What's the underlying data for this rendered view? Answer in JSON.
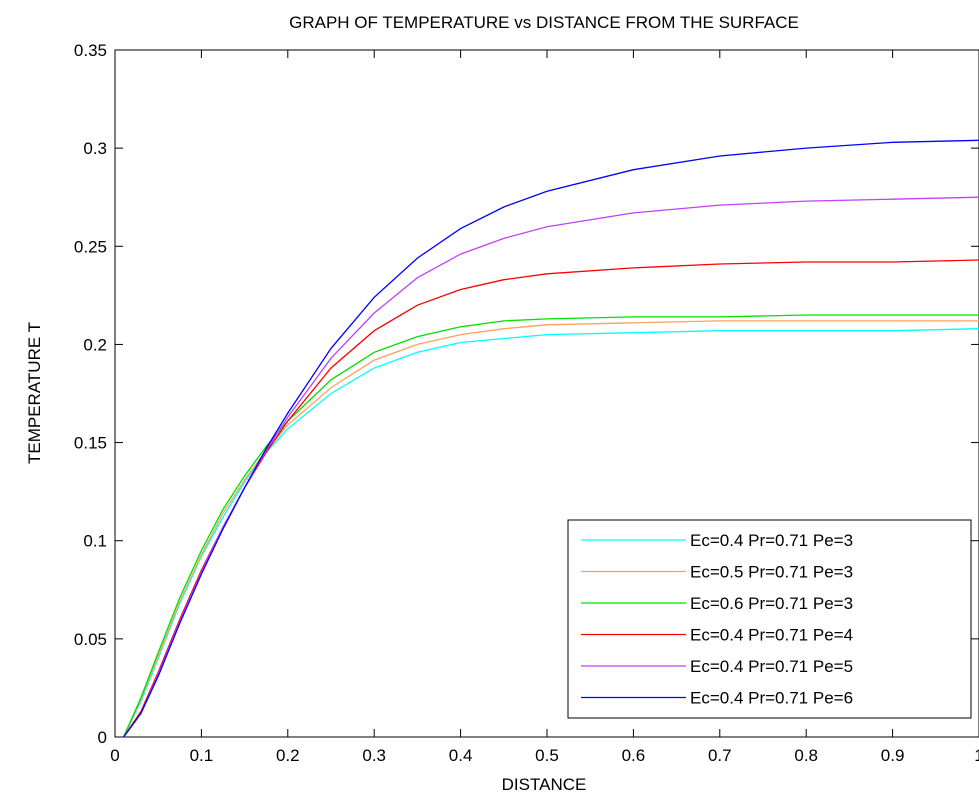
{
  "chart_data": {
    "type": "line",
    "title": "GRAPH OF TEMPERATURE vs DISTANCE FROM THE SURFACE",
    "xlabel": "DISTANCE",
    "ylabel": "TEMPERATURE T",
    "xlim": [
      0,
      1
    ],
    "ylim": [
      0,
      0.35
    ],
    "x_ticks": [
      0,
      0.1,
      0.2,
      0.3,
      0.4,
      0.5,
      0.6,
      0.7,
      0.8,
      0.9,
      1
    ],
    "x_tick_labels": [
      "0",
      "0.1",
      "0.2",
      "0.3",
      "0.4",
      "0.5",
      "0.6",
      "0.7",
      "0.8",
      "0.9",
      "1"
    ],
    "y_ticks": [
      0,
      0.05,
      0.1,
      0.15,
      0.2,
      0.25,
      0.3,
      0.35
    ],
    "y_tick_labels": [
      "0",
      "0.05",
      "0.1",
      "0.15",
      "0.2",
      "0.25",
      "0.3",
      "0.35"
    ],
    "grid": false,
    "legend_position": "bottom-right",
    "series": [
      {
        "name": "Ec=0.4 Pr=0.71 Pe=3",
        "color": "#00ffff",
        "x": [
          0.01,
          0.03,
          0.05,
          0.075,
          0.1,
          0.125,
          0.15,
          0.175,
          0.2,
          0.25,
          0.3,
          0.35,
          0.4,
          0.45,
          0.5,
          0.6,
          0.7,
          0.8,
          0.9,
          1.0
        ],
        "y": [
          0,
          0.018,
          0.04,
          0.068,
          0.092,
          0.112,
          0.13,
          0.145,
          0.157,
          0.175,
          0.188,
          0.196,
          0.201,
          0.203,
          0.205,
          0.206,
          0.207,
          0.207,
          0.207,
          0.208
        ]
      },
      {
        "name": "Ec=0.5 Pr=0.71 Pe=3",
        "color": "#ffa060",
        "x": [
          0.01,
          0.03,
          0.05,
          0.075,
          0.1,
          0.125,
          0.15,
          0.175,
          0.2,
          0.25,
          0.3,
          0.35,
          0.4,
          0.45,
          0.5,
          0.6,
          0.7,
          0.8,
          0.9,
          1.0
        ],
        "y": [
          0,
          0.019,
          0.041,
          0.069,
          0.093,
          0.114,
          0.131,
          0.146,
          0.159,
          0.178,
          0.192,
          0.2,
          0.205,
          0.208,
          0.21,
          0.211,
          0.212,
          0.212,
          0.212,
          0.212
        ]
      },
      {
        "name": "Ec=0.6 Pr=0.71 Pe=3",
        "color": "#00e000",
        "x": [
          0.01,
          0.03,
          0.05,
          0.075,
          0.1,
          0.125,
          0.15,
          0.175,
          0.2,
          0.25,
          0.3,
          0.35,
          0.4,
          0.45,
          0.5,
          0.6,
          0.7,
          0.8,
          0.9,
          1.0
        ],
        "y": [
          0,
          0.02,
          0.043,
          0.071,
          0.095,
          0.116,
          0.133,
          0.148,
          0.161,
          0.182,
          0.196,
          0.204,
          0.209,
          0.212,
          0.213,
          0.214,
          0.214,
          0.215,
          0.215,
          0.215
        ]
      },
      {
        "name": "Ec=0.4 Pr=0.71 Pe=4",
        "color": "#ff0000",
        "x": [
          0.01,
          0.03,
          0.05,
          0.075,
          0.1,
          0.125,
          0.15,
          0.175,
          0.2,
          0.25,
          0.3,
          0.35,
          0.4,
          0.45,
          0.5,
          0.6,
          0.7,
          0.8,
          0.9,
          1.0
        ],
        "y": [
          0,
          0.013,
          0.033,
          0.06,
          0.085,
          0.107,
          0.127,
          0.145,
          0.161,
          0.188,
          0.207,
          0.22,
          0.228,
          0.233,
          0.236,
          0.239,
          0.241,
          0.242,
          0.242,
          0.243
        ]
      },
      {
        "name": "Ec=0.4 Pr=0.71 Pe=5",
        "color": "#c040ff",
        "x": [
          0.01,
          0.03,
          0.05,
          0.075,
          0.1,
          0.125,
          0.15,
          0.175,
          0.2,
          0.25,
          0.3,
          0.35,
          0.4,
          0.45,
          0.5,
          0.6,
          0.7,
          0.8,
          0.9,
          1.0
        ],
        "y": [
          0,
          0.012,
          0.032,
          0.059,
          0.084,
          0.107,
          0.127,
          0.146,
          0.163,
          0.193,
          0.216,
          0.234,
          0.246,
          0.254,
          0.26,
          0.267,
          0.271,
          0.273,
          0.274,
          0.275
        ]
      },
      {
        "name": "Ec=0.4 Pr=0.71 Pe=6",
        "color": "#0000ff",
        "x": [
          0.01,
          0.03,
          0.05,
          0.075,
          0.1,
          0.125,
          0.15,
          0.175,
          0.2,
          0.25,
          0.3,
          0.35,
          0.4,
          0.45,
          0.5,
          0.6,
          0.7,
          0.8,
          0.9,
          1.0
        ],
        "y": [
          0,
          0.012,
          0.031,
          0.058,
          0.083,
          0.106,
          0.127,
          0.147,
          0.165,
          0.198,
          0.224,
          0.244,
          0.259,
          0.27,
          0.278,
          0.289,
          0.296,
          0.3,
          0.303,
          0.304
        ]
      }
    ]
  }
}
